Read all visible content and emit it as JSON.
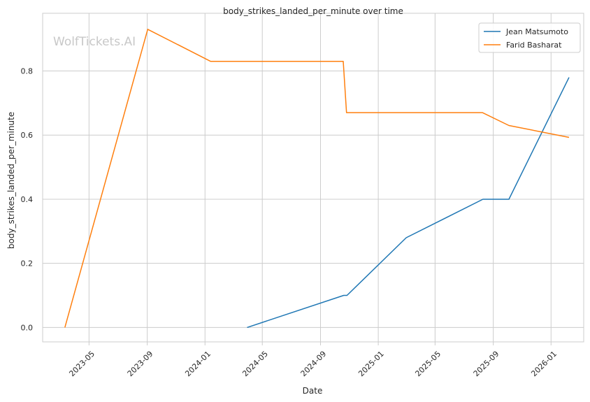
{
  "chart_data": {
    "type": "line",
    "title": "body_strikes_landed_per_minute over time",
    "xlabel": "Date",
    "ylabel": "body_strikes_landed_per_minute",
    "watermark": "WolfTickets.AI",
    "x_ticks": [
      "2023-05",
      "2023-09",
      "2024-01",
      "2024-05",
      "2024-09",
      "2025-01",
      "2025-05",
      "2025-09",
      "2026-01"
    ],
    "y_ticks": [
      "0.0",
      "0.2",
      "0.4",
      "0.6",
      "0.8"
    ],
    "xlim": [
      "2023-01-23",
      "2026-03-11"
    ],
    "ylim": [
      -0.045,
      0.98
    ],
    "grid": true,
    "legend_position": "top-right",
    "series": [
      {
        "name": "Jean Matsumoto",
        "color": "#1f77b4",
        "points": [
          {
            "x": "2024-03-30",
            "y": 0.0
          },
          {
            "x": "2024-10-20",
            "y": 0.1
          },
          {
            "x": "2024-10-27",
            "y": 0.1
          },
          {
            "x": "2025-03-01",
            "y": 0.28
          },
          {
            "x": "2025-08-10",
            "y": 0.4
          },
          {
            "x": "2025-10-04",
            "y": 0.4
          },
          {
            "x": "2026-02-08",
            "y": 0.78
          }
        ]
      },
      {
        "name": "Farid Basharat",
        "color": "#ff7f0e",
        "points": [
          {
            "x": "2023-03-11",
            "y": 0.0
          },
          {
            "x": "2023-09-02",
            "y": 0.93
          },
          {
            "x": "2024-01-13",
            "y": 0.83
          },
          {
            "x": "2024-10-19",
            "y": 0.83
          },
          {
            "x": "2024-10-26",
            "y": 0.67
          },
          {
            "x": "2025-08-09",
            "y": 0.67
          },
          {
            "x": "2025-10-04",
            "y": 0.63
          },
          {
            "x": "2026-02-08",
            "y": 0.593
          }
        ]
      }
    ]
  }
}
